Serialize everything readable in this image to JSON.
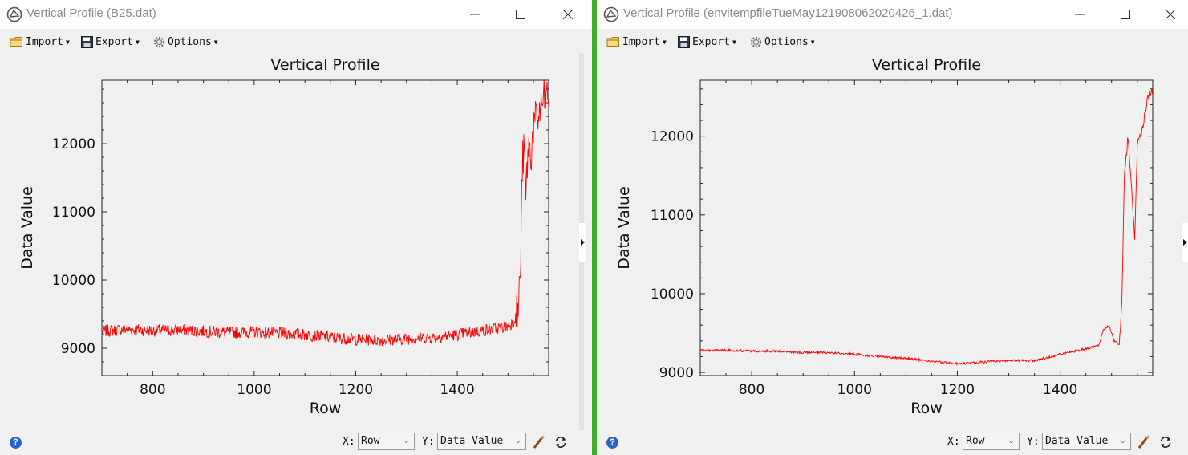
{
  "windows": [
    {
      "id": "left",
      "title": "Vertical Profile (B25.dat)",
      "menu": {
        "import": "Import",
        "export": "Export",
        "options": "Options"
      },
      "status": {
        "x_label": "X:",
        "x_value": "Row",
        "y_label": "Y:",
        "y_value": "Data Value"
      },
      "chart_data": {
        "type": "line",
        "title": "Vertical Profile",
        "xlabel": "Row",
        "ylabel": "Data Value",
        "xlim": [
          700,
          1580
        ],
        "ylim": [
          8600,
          12930
        ],
        "xticks": [
          800,
          1000,
          1200,
          1400
        ],
        "yticks": [
          9000,
          10000,
          11000,
          12000
        ],
        "series": [
          {
            "color": "#ff0000",
            "x": [
              700,
              750,
              800,
              850,
              900,
              950,
              1000,
              1050,
              1100,
              1150,
              1200,
              1250,
              1300,
              1350,
              1400,
              1450,
              1500,
              1510,
              1520,
              1525,
              1528,
              1532,
              1535,
              1540,
              1545,
              1550,
              1560,
              1570,
              1580
            ],
            "y": [
              9250,
              9280,
              9260,
              9270,
              9250,
              9230,
              9240,
              9220,
              9200,
              9160,
              9130,
              9120,
              9140,
              9160,
              9200,
              9260,
              9320,
              9380,
              9550,
              10300,
              11700,
              11900,
              11200,
              12000,
              11800,
              12250,
              12400,
              12650,
              12700
            ],
            "noise": 90
          }
        ]
      }
    },
    {
      "id": "right",
      "title": "Vertical Profile (envitempfileTueMay121908062020426_1.dat)",
      "menu": {
        "import": "Import",
        "export": "Export",
        "options": "Options"
      },
      "status": {
        "x_label": "X:",
        "x_value": "Row",
        "y_label": "Y:",
        "y_value": "Data Value"
      },
      "chart_data": {
        "type": "line",
        "title": "Vertical Profile",
        "xlabel": "Row",
        "ylabel": "Data Value",
        "xlim": [
          700,
          1580
        ],
        "ylim": [
          8960,
          12710
        ],
        "xticks": [
          800,
          1000,
          1200,
          1400
        ],
        "yticks": [
          9000,
          10000,
          11000,
          12000
        ],
        "series": [
          {
            "color": "#ff0000",
            "x": [
              700,
              750,
              800,
              850,
              900,
              950,
              1000,
              1050,
              1100,
              1150,
              1200,
              1250,
              1300,
              1350,
              1400,
              1450,
              1475,
              1485,
              1495,
              1505,
              1515,
              1520,
              1525,
              1532,
              1540,
              1545,
              1550,
              1560,
              1570,
              1580
            ],
            "y": [
              9280,
              9280,
              9270,
              9270,
              9250,
              9250,
              9230,
              9200,
              9180,
              9140,
              9110,
              9130,
              9150,
              9150,
              9230,
              9300,
              9350,
              9550,
              9600,
              9400,
              9350,
              9900,
              11500,
              12000,
              11200,
              10700,
              11900,
              12100,
              12500,
              12560
            ],
            "noise": 15
          }
        ]
      }
    }
  ],
  "colors": {
    "divider": "#3fae2a",
    "line": "#ff0000",
    "help": "#2b63c4"
  }
}
